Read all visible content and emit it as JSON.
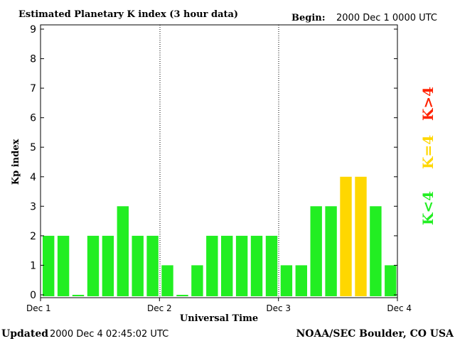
{
  "header": {
    "title": "Estimated Planetary K index (3 hour data)",
    "begin_label": "Begin:",
    "begin_value": "2000 Dec 1 0000 UTC"
  },
  "footer": {
    "updated_label": "Updated",
    "updated_value": "2000 Dec  4 02:45:02 UTC",
    "credit": "NOAA/SEC Boulder, CO USA"
  },
  "legend": {
    "high": "K>4",
    "equal": "K=4",
    "low": "K<4"
  },
  "colors": {
    "low": "#22ee22",
    "equal": "#ffd700",
    "high": "#ff2200",
    "axis": "#000000"
  },
  "chart_data": {
    "type": "bar",
    "title": "Estimated Planetary K index (3 hour data)",
    "xlabel": "Universal Time",
    "ylabel": "Kp index",
    "ylim": [
      0,
      9
    ],
    "yticks": [
      "0",
      "1",
      "2",
      "3",
      "4",
      "5",
      "6",
      "7",
      "8",
      "9"
    ],
    "x_tick_labels": [
      "Dec 1",
      "Dec 2",
      "Dec 3",
      "Dec 4"
    ],
    "interval_hours": 3,
    "day_separators": [
      "Dec 2",
      "Dec 3"
    ],
    "values": [
      2,
      2,
      0,
      2,
      2,
      3,
      2,
      2,
      1,
      0,
      1,
      2,
      2,
      2,
      2,
      2,
      1,
      1,
      3,
      3,
      4,
      4,
      3,
      1
    ]
  }
}
